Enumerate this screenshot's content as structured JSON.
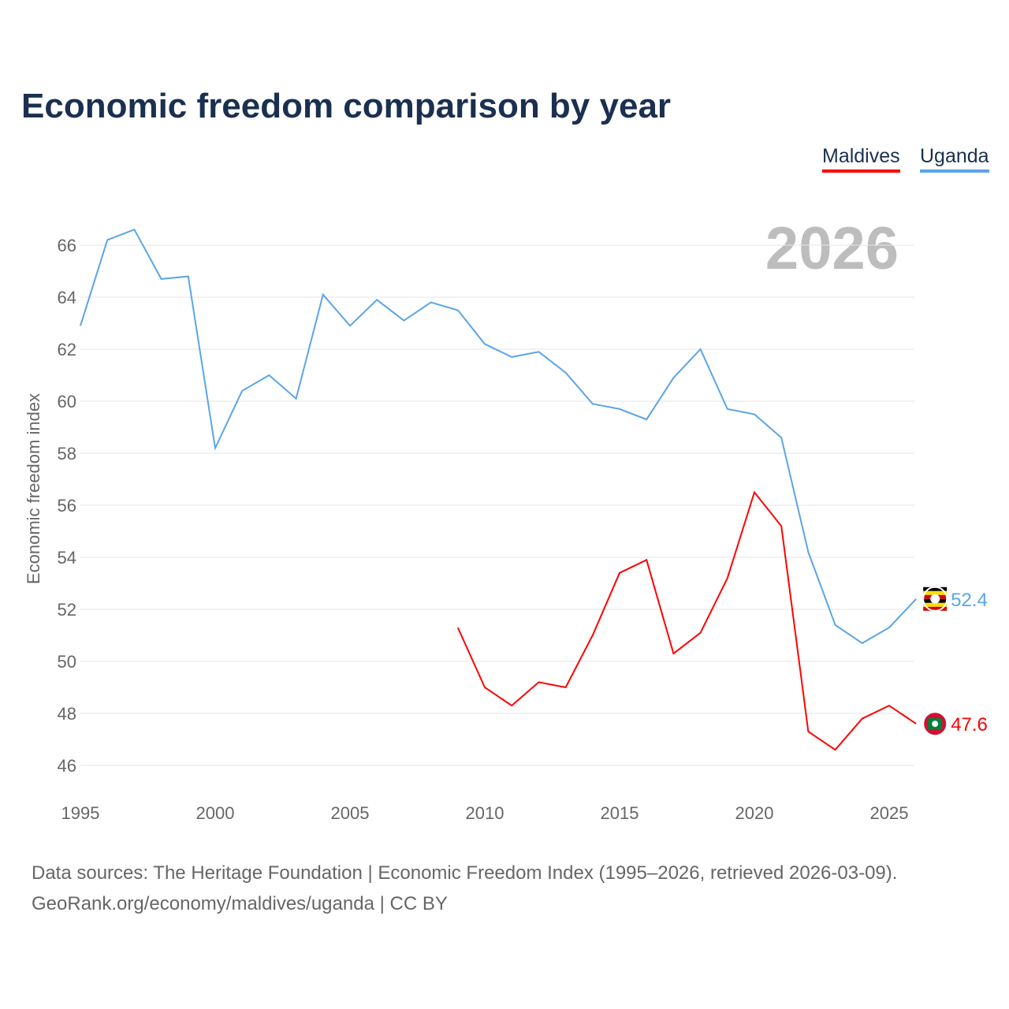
{
  "chart_data": {
    "type": "line",
    "title": "Economic freedom comparison by year",
    "ylabel": "Economic freedom index",
    "xlabel": "",
    "ylim": [
      45,
      67
    ],
    "xlim": [
      1995,
      2026
    ],
    "yticks": [
      46,
      48,
      50,
      52,
      54,
      56,
      58,
      60,
      62,
      64,
      66
    ],
    "xticks": [
      1995,
      2000,
      2005,
      2010,
      2015,
      2020,
      2025
    ],
    "grid": true,
    "legend_position": "top-right",
    "current_year_label": "2026",
    "series": [
      {
        "name": "Maldives",
        "color": "#ff0000",
        "end_label": "47.6",
        "x": [
          2009,
          2010,
          2011,
          2012,
          2013,
          2014,
          2015,
          2016,
          2017,
          2018,
          2019,
          2020,
          2021,
          2022,
          2023,
          2024,
          2025,
          2026
        ],
        "values": [
          51.3,
          49.0,
          48.3,
          49.2,
          49.0,
          51.0,
          53.4,
          53.9,
          50.3,
          51.1,
          53.2,
          56.5,
          55.2,
          47.3,
          46.6,
          47.8,
          48.3,
          47.6
        ]
      },
      {
        "name": "Uganda",
        "color": "#5aa5e8",
        "end_label": "52.4",
        "x": [
          1995,
          1996,
          1997,
          1998,
          1999,
          2000,
          2001,
          2002,
          2003,
          2004,
          2005,
          2006,
          2007,
          2008,
          2009,
          2010,
          2011,
          2012,
          2013,
          2014,
          2015,
          2016,
          2017,
          2018,
          2019,
          2020,
          2021,
          2022,
          2023,
          2024,
          2025,
          2026
        ],
        "values": [
          62.9,
          66.2,
          66.6,
          64.7,
          64.8,
          58.2,
          60.4,
          61.0,
          60.1,
          64.1,
          62.9,
          63.9,
          63.1,
          63.8,
          63.5,
          62.2,
          61.7,
          61.9,
          61.1,
          59.9,
          59.7,
          59.3,
          60.9,
          62.0,
          59.7,
          59.5,
          58.6,
          54.2,
          51.4,
          50.7,
          51.3,
          52.4
        ]
      }
    ],
    "source_lines": [
      "Data sources: The Heritage Foundation | Economic Freedom Index (1995–2026, retrieved 2026-03-09).",
      "GeoRank.org/economy/maldives/uganda | CC BY"
    ]
  }
}
